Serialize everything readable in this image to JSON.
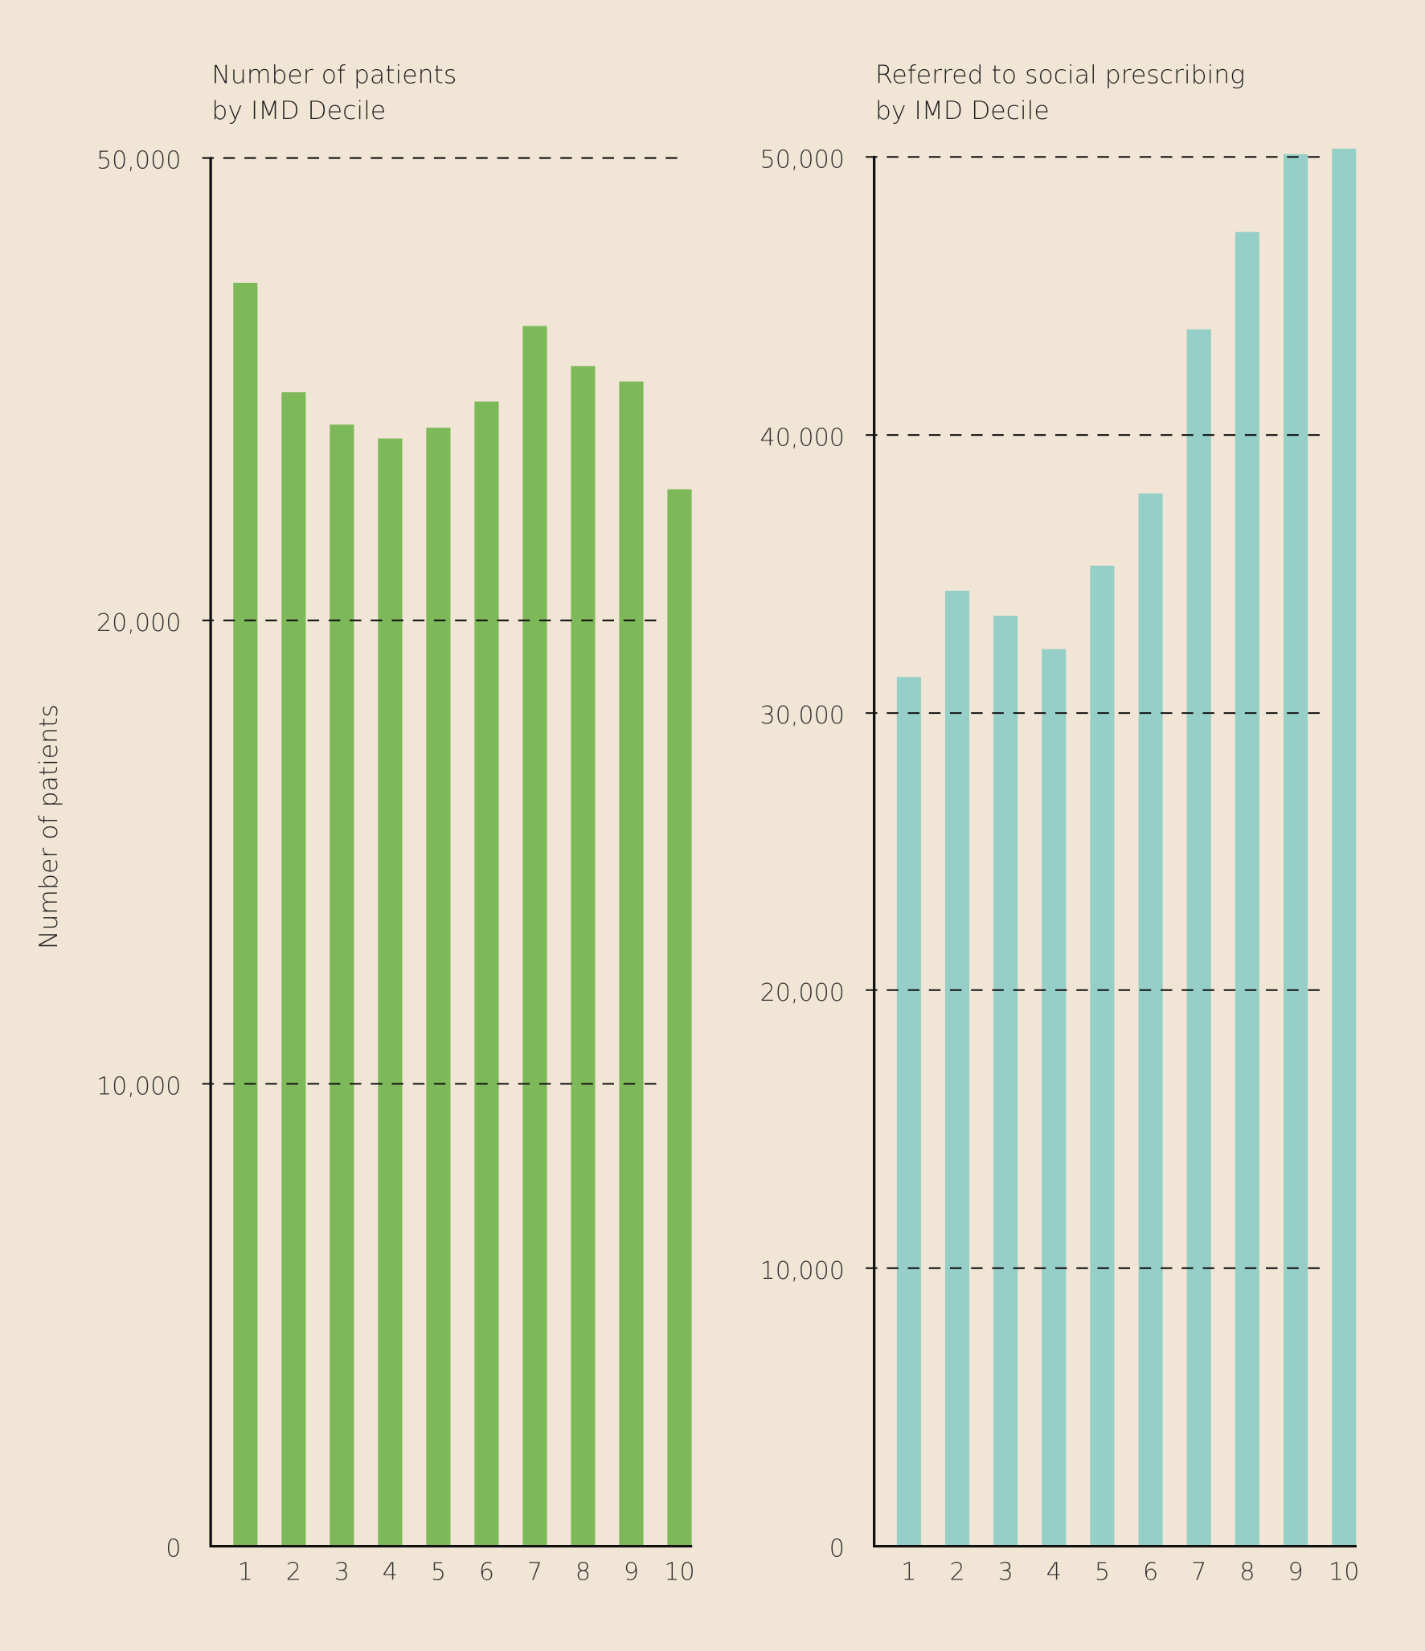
{
  "chart_data": [
    {
      "type": "bar",
      "title_lines": [
        "Number of patients",
        "by IMD Decile"
      ],
      "ylabel": "Number of patients",
      "xlabel": "",
      "categories": [
        "1",
        "2",
        "3",
        "4",
        "5",
        "6",
        "7",
        "8",
        "9",
        "10"
      ],
      "values": [
        41900,
        34800,
        32700,
        31800,
        32500,
        34200,
        39100,
        36500,
        35500,
        28500
      ],
      "yticks": [
        0,
        10000,
        20000,
        50000
      ],
      "ytick_labels": [
        "0",
        "10,000",
        "20,000",
        "50,000"
      ],
      "ylim": [
        0,
        50000
      ],
      "grid": "dashed horizontal at ticks",
      "color": "#7db859"
    },
    {
      "type": "bar",
      "title_lines": [
        "Referred to social prescribing",
        "by IMD Decile"
      ],
      "xlabel": "",
      "categories": [
        "1",
        "2",
        "3",
        "4",
        "5",
        "6",
        "7",
        "8",
        "9",
        "10"
      ],
      "values": [
        31300,
        34400,
        33500,
        32300,
        35300,
        37900,
        43800,
        47300,
        50100,
        50300
      ],
      "yticks": [
        0,
        10000,
        20000,
        30000,
        40000,
        50000
      ],
      "ytick_labels": [
        "0",
        "10,000",
        "20,000",
        "30,000",
        "40,000",
        "50,000"
      ],
      "ylim": [
        0,
        50000
      ],
      "grid": "dashed horizontal at ticks",
      "color": "#96cfc8"
    }
  ],
  "background": "#f1e5d5"
}
